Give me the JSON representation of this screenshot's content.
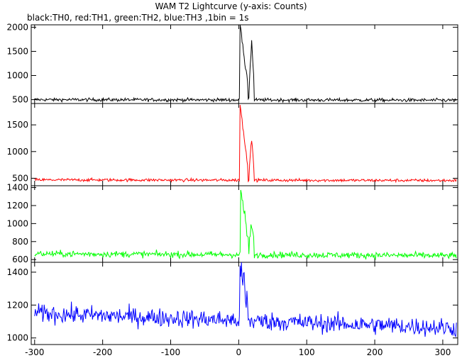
{
  "title": "WAM T2 Lightcurve (y-axis: Counts)",
  "subtitle": "black:TH0, red:TH1, green:TH2, blue:TH3 ,1bin = 1s",
  "chart_data": [
    {
      "type": "line",
      "title": "",
      "series": [
        {
          "name": "",
          "color": "#000000",
          "baseline": 500,
          "noise": 25,
          "spikes": [
            {
              "x": 2,
              "peak": 2050
            },
            {
              "x": 19,
              "peak": 1700
            }
          ]
        }
      ],
      "xlim": [
        -305,
        322
      ],
      "ylim": [
        420,
        2050
      ],
      "yticks": [
        500,
        1000,
        1500,
        2000
      ],
      "grid": false
    },
    {
      "type": "line",
      "title": "",
      "series": [
        {
          "name": "",
          "color": "#ff0000",
          "baseline": 470,
          "noise": 20,
          "spikes": [
            {
              "x": 2,
              "peak": 1880
            },
            {
              "x": 19,
              "peak": 1230
            }
          ]
        }
      ],
      "xlim": [
        -305,
        322
      ],
      "ylim": [
        360,
        1900
      ],
      "yticks": [
        500,
        1000,
        1500
      ],
      "grid": false
    },
    {
      "type": "line",
      "title": "",
      "series": [
        {
          "name": "",
          "color": "#00ff00",
          "baseline": 665,
          "noise": 25,
          "spikes": [
            {
              "x": 3,
              "peak": 1380
            },
            {
              "x": 19,
              "peak": 1000
            }
          ]
        }
      ],
      "xlim": [
        -305,
        322
      ],
      "ylim": [
        570,
        1420
      ],
      "yticks": [
        600,
        800,
        1000,
        1200,
        1400
      ],
      "grid": false
    },
    {
      "type": "line",
      "title": "",
      "series": [
        {
          "name": "",
          "color": "#0000ff",
          "baseline": 1150,
          "noise": 40,
          "spikes": [
            {
              "x": 2,
              "peak": 1450
            }
          ]
        }
      ],
      "xlim": [
        -305,
        322
      ],
      "ylim": [
        960,
        1460
      ],
      "yticks": [
        1000,
        1200,
        1400
      ],
      "grid": false
    }
  ],
  "xticks": [
    -300,
    -200,
    -100,
    0,
    100,
    200,
    300
  ]
}
